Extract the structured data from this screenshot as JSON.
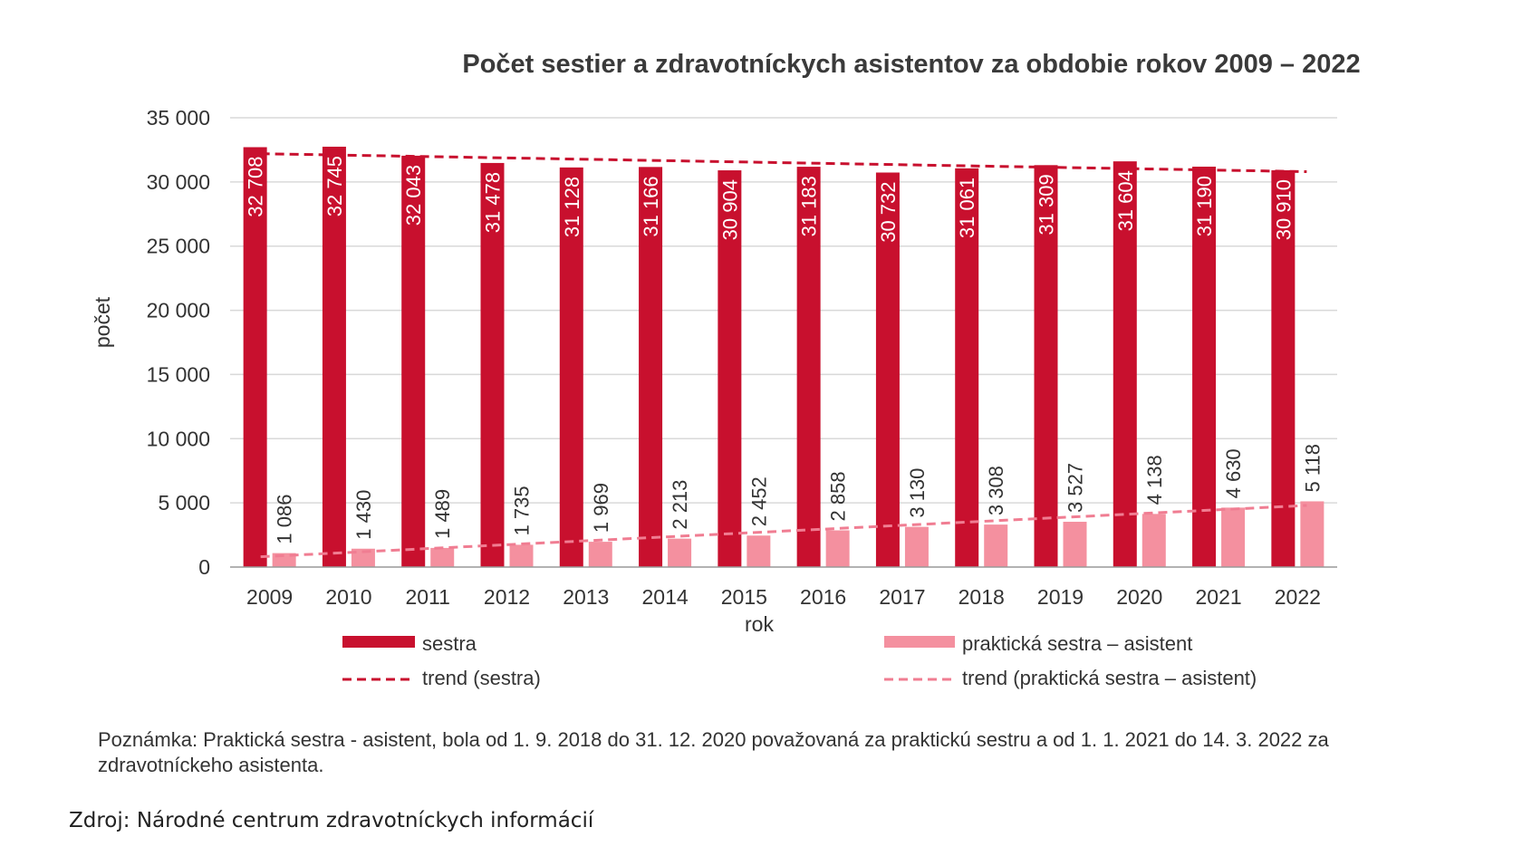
{
  "chart_data": {
    "type": "bar",
    "title": "Počet sestier a zdravotníckych asistentov za obdobie rokov 2009 – 2022",
    "xlabel": "rok",
    "ylabel": "počet",
    "ylim": [
      0,
      35000
    ],
    "yticks": [
      0,
      5000,
      10000,
      15000,
      20000,
      25000,
      30000,
      35000
    ],
    "ytick_labels": [
      "0",
      "5 000",
      "10 000",
      "15 000",
      "20 000",
      "25 000",
      "30 000",
      "35 000"
    ],
    "categories": [
      "2009",
      "2010",
      "2011",
      "2012",
      "2013",
      "2014",
      "2015",
      "2016",
      "2017",
      "2018",
      "2019",
      "2020",
      "2021",
      "2022"
    ],
    "grid": true,
    "legend_position": "bottom",
    "series": [
      {
        "name": "sestra",
        "color": "#c8102e",
        "values": [
          32708,
          32745,
          32043,
          31478,
          31128,
          31166,
          30904,
          31183,
          30732,
          31061,
          31309,
          31604,
          31190,
          30910
        ],
        "labels": [
          "32 708",
          "32 745",
          "32 043",
          "31 478",
          "31 128",
          "31 166",
          "30 904",
          "31 183",
          "30 732",
          "31 061",
          "31 309",
          "31 604",
          "31 190",
          "30 910"
        ]
      },
      {
        "name": "praktická sestra – asistent",
        "color": "#f4909f",
        "values": [
          1086,
          1430,
          1489,
          1735,
          1969,
          2213,
          2452,
          2858,
          3130,
          3308,
          3527,
          4138,
          4630,
          5118
        ],
        "labels": [
          "1 086",
          "1 430",
          "1 489",
          "1 735",
          "1 969",
          "2 213",
          "2 452",
          "2 858",
          "3 130",
          "3 308",
          "3 527",
          "4 138",
          "4 630",
          "5 118"
        ]
      }
    ],
    "trends": [
      {
        "name": "trend (sestra)",
        "color": "#c8102e",
        "start": 32200,
        "end": 30800
      },
      {
        "name": "trend (praktická sestra – asistent)",
        "color": "#f07d92",
        "start": 800,
        "end": 4800
      }
    ]
  },
  "note": "Poznámka: Praktická sestra - asistent, bola od 1. 9. 2018 do 31. 12. 2020 považovaná za praktickú sestru a od 1. 1. 2021 do 14. 3. 2022 za zdravotníckeho asistenta.",
  "source": "Zdroj: Národné centrum zdravotníckych informácií"
}
